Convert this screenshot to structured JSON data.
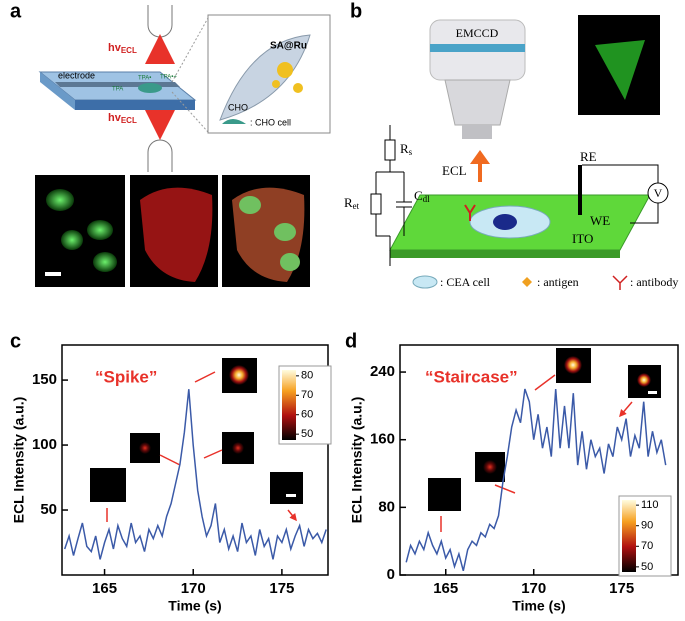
{
  "panel_a": {
    "panel": "a",
    "hv": "hv",
    "ecl_sub": "ECL",
    "electrode": "electrode",
    "tpa": "TPA",
    "tpa_rad": "TPA•",
    "tpa_cat": "TPA•+",
    "sa_ru": "SA@Ru",
    "cho": "CHO",
    "cho_cell": ": CHO cell"
  },
  "panel_b": {
    "panel": "b",
    "emccd": "EMCCD",
    "ecl": "ECL",
    "re": "RE",
    "we": "WE",
    "ito": "ITO",
    "v": "V",
    "r": "R",
    "rs_sub": "s",
    "ret_sub": "et",
    "c": "C",
    "cdl_sub": "dl",
    "cea_cell": ": CEA cell",
    "antigen": ": antigen",
    "antibody": ": antibody"
  },
  "chart_data": [
    {
      "type": "line",
      "panel": "c",
      "annotation": "“Spike”",
      "xlabel": "Time (s)",
      "ylabel": "ECL Intensity (a.u.)",
      "x": [
        162.75,
        163,
        163.25,
        163.5,
        163.75,
        164,
        164.25,
        164.5,
        164.75,
        165,
        165.25,
        165.5,
        165.75,
        166,
        166.25,
        166.5,
        166.75,
        167,
        167.25,
        167.5,
        167.75,
        168,
        168.25,
        168.5,
        168.75,
        169,
        169.25,
        169.5,
        169.75,
        170,
        170.25,
        170.5,
        170.75,
        171,
        171.25,
        171.5,
        171.75,
        172,
        172.25,
        172.5,
        172.75,
        173,
        173.25,
        173.5,
        173.75,
        174,
        174.25,
        174.5,
        174.75,
        175,
        175.25,
        175.5,
        175.75,
        176,
        176.25,
        176.5,
        176.75,
        177,
        177.25,
        177.5
      ],
      "values": [
        20,
        30,
        15,
        28,
        40,
        22,
        18,
        30,
        12,
        25,
        35,
        20,
        38,
        28,
        22,
        40,
        25,
        30,
        18,
        35,
        28,
        38,
        30,
        45,
        55,
        70,
        85,
        110,
        143,
        100,
        65,
        45,
        30,
        38,
        55,
        25,
        35,
        20,
        30,
        18,
        40,
        25,
        30,
        15,
        35,
        22,
        28,
        12,
        30,
        25,
        35,
        20,
        30,
        38,
        22,
        35,
        28,
        32,
        25,
        35
      ],
      "color": "#3b5aa8",
      "xlim": [
        162.6,
        177.6
      ],
      "ylim": [
        0,
        177
      ],
      "xticks": [
        165,
        170,
        175
      ],
      "yticks": [
        50,
        100,
        150
      ],
      "colorbar": {
        "lim": [
          47,
          83
        ],
        "ticks": [
          50,
          60,
          70,
          80
        ]
      }
    },
    {
      "type": "line",
      "panel": "d",
      "annotation": "“Staircase”",
      "xlabel": "Time (s)",
      "ylabel": "ECL Intensity (a.u.)",
      "x": [
        162.75,
        163,
        163.25,
        163.5,
        163.75,
        164,
        164.25,
        164.5,
        164.75,
        165,
        165.25,
        165.5,
        165.75,
        166,
        166.25,
        166.5,
        166.75,
        167,
        167.25,
        167.5,
        167.75,
        168,
        168.25,
        168.5,
        168.75,
        169,
        169.25,
        169.5,
        169.75,
        170,
        170.25,
        170.5,
        170.75,
        171,
        171.25,
        171.5,
        171.75,
        172,
        172.25,
        172.5,
        172.75,
        173,
        173.25,
        173.5,
        173.75,
        174,
        174.25,
        174.5,
        174.75,
        175,
        175.25,
        175.5,
        175.75,
        176,
        176.25,
        176.5,
        176.75,
        177,
        177.25,
        177.5
      ],
      "values": [
        15,
        35,
        25,
        40,
        30,
        50,
        35,
        25,
        40,
        20,
        30,
        10,
        25,
        5,
        30,
        40,
        35,
        50,
        45,
        60,
        55,
        70,
        110,
        140,
        175,
        195,
        180,
        220,
        205,
        160,
        190,
        150,
        175,
        140,
        220,
        150,
        200,
        150,
        215,
        130,
        170,
        125,
        160,
        140,
        150,
        120,
        155,
        140,
        175,
        160,
        185,
        140,
        165,
        150,
        205,
        140,
        170,
        145,
        160,
        130
      ],
      "color": "#3b5aa8",
      "xlim": [
        162.4,
        178.2
      ],
      "ylim": [
        0,
        272
      ],
      "xticks": [
        165,
        170,
        175
      ],
      "yticks": [
        0,
        80,
        160,
        240
      ],
      "colorbar": {
        "lim": [
          45,
          115
        ],
        "ticks": [
          50,
          70,
          90,
          110
        ]
      }
    }
  ]
}
